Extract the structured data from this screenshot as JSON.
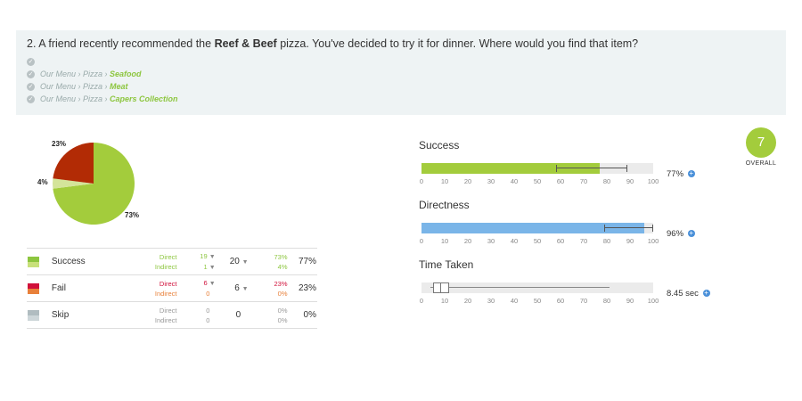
{
  "question": {
    "number": "2.",
    "text_before": " A friend recently recommended the ",
    "highlight": "Reef & Beef",
    "text_after": " pizza. You've decided to try it for dinner. Where would you find that item?",
    "paths": [
      {
        "prefix": "",
        "leaf": ""
      },
      {
        "prefix": "Our Menu › Pizza › ",
        "leaf": "Seafood"
      },
      {
        "prefix": "Our Menu › Pizza › ",
        "leaf": "Meat"
      },
      {
        "prefix": "Our Menu › Pizza › ",
        "leaf": "Capers Collection"
      }
    ]
  },
  "chart_data": {
    "type": "pie",
    "slices": [
      {
        "label": "73%",
        "value": 73,
        "color": "#a3cc3c"
      },
      {
        "label": "",
        "value": 0,
        "color": "#d7ea93"
      },
      {
        "label": "23%",
        "value": 23,
        "color": "#b22b05"
      },
      {
        "label": "4%",
        "value": 4,
        "color": "#d4e49a"
      }
    ]
  },
  "stats": [
    {
      "label": "Success",
      "direct_label": "Direct",
      "indirect_label": "Indirect",
      "direct": "19",
      "indirect": "1",
      "total": "20",
      "direct_pct": "73%",
      "indirect_pct": "4%",
      "total_pct": "77%",
      "color_direct": "#8dc63f",
      "color_indirect": "#c8e07a",
      "text_color": "#8dc63f",
      "text_color2": "#8dc63f"
    },
    {
      "label": "Fail",
      "direct_label": "Direct",
      "indirect_label": "Indirect",
      "direct": "6",
      "indirect": "0",
      "total": "6",
      "direct_pct": "23%",
      "indirect_pct": "0%",
      "total_pct": "23%",
      "color_direct": "#d0103a",
      "color_indirect": "#e8803a",
      "text_color": "#d0103a",
      "text_color2": "#e8803a"
    },
    {
      "label": "Skip",
      "direct_label": "Direct",
      "indirect_label": "Indirect",
      "direct": "0",
      "indirect": "0",
      "total": "0",
      "direct_pct": "0%",
      "indirect_pct": "0%",
      "total_pct": "0%",
      "color_direct": "#b0bcc0",
      "color_indirect": "#cdd6d9",
      "text_color": "#999999",
      "text_color2": "#999999"
    }
  ],
  "metrics": {
    "success": {
      "title": "Success",
      "value": 77,
      "ci_low": 58,
      "ci_high": 89,
      "value_text": "77%",
      "color": "#a3cc3c"
    },
    "directness": {
      "title": "Directness",
      "value": 96,
      "ci_low": 79,
      "ci_high": 100,
      "value_text": "96%",
      "color": "#7ab5e8"
    },
    "time_taken": {
      "title": "Time Taken",
      "whisker_low": 4,
      "q1": 5,
      "median": 8,
      "q3": 12,
      "whisker_high": 81,
      "value_text": "8.45 sec"
    },
    "ticks": [
      "0",
      "10",
      "20",
      "30",
      "40",
      "50",
      "60",
      "70",
      "80",
      "90",
      "100"
    ]
  },
  "overall": {
    "score": "7",
    "label": "OVERALL"
  }
}
